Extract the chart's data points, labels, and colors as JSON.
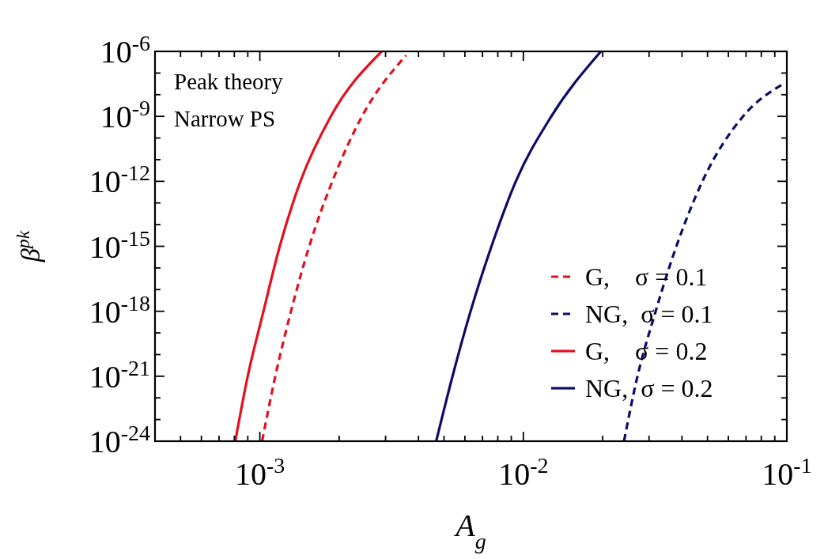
{
  "chart_data": {
    "type": "line",
    "xlabel": "A$_{g}$",
    "ylabel": "β$^{pk}$",
    "log": "xy",
    "legend": "bottom right",
    "grid": false,
    "xlim": [
      0.0004,
      0.1
    ],
    "ylim": [
      1e-24,
      1e-06
    ],
    "xticks": [
      {
        "value": 0.0004,
        "label": null
      },
      {
        "value": 0.0005,
        "label": null
      },
      {
        "value": 0.0006,
        "label": null
      },
      {
        "value": 0.0007,
        "label": null
      },
      {
        "value": 0.0008,
        "label": null
      },
      {
        "value": 0.0009,
        "label": null
      },
      {
        "value": 0.001,
        "label": "10$^{-3}$"
      },
      {
        "value": 0.002,
        "label": null
      },
      {
        "value": 0.003,
        "label": null
      },
      {
        "value": 0.004,
        "label": null
      },
      {
        "value": 0.005,
        "label": null
      },
      {
        "value": 0.006,
        "label": null
      },
      {
        "value": 0.007,
        "label": null
      },
      {
        "value": 0.008,
        "label": null
      },
      {
        "value": 0.009,
        "label": null
      },
      {
        "value": 0.01,
        "label": "10$^{-2}$"
      },
      {
        "value": 0.02,
        "label": null
      },
      {
        "value": 0.03,
        "label": null
      },
      {
        "value": 0.04,
        "label": null
      },
      {
        "value": 0.05,
        "label": null
      },
      {
        "value": 0.06,
        "label": null
      },
      {
        "value": 0.07,
        "label": null
      },
      {
        "value": 0.08,
        "label": null
      },
      {
        "value": 0.09,
        "label": null
      },
      {
        "value": 0.1,
        "label": "10$^{-1}$"
      }
    ],
    "yticks": [
      {
        "value": 1e-24,
        "label": "10$^{-24}$"
      },
      {
        "value": 1e-23,
        "label": null
      },
      {
        "value": 1e-22,
        "label": null
      },
      {
        "value": 1e-21,
        "label": "10$^{-21}$"
      },
      {
        "value": 1e-20,
        "label": null
      },
      {
        "value": 1e-19,
        "label": null
      },
      {
        "value": 1e-18,
        "label": "10$^{-18}$"
      },
      {
        "value": 1e-17,
        "label": null
      },
      {
        "value": 1e-16,
        "label": null
      },
      {
        "value": 1e-15,
        "label": "10$^{-15}$"
      },
      {
        "value": 1e-14,
        "label": null
      },
      {
        "value": 1e-13,
        "label": null
      },
      {
        "value": 1e-12,
        "label": "10$^{-12}$"
      },
      {
        "value": 1e-11,
        "label": null
      },
      {
        "value": 1e-10,
        "label": null
      },
      {
        "value": 1e-09,
        "label": "10$^{-9}$"
      },
      {
        "value": 1e-08,
        "label": null
      },
      {
        "value": 1e-07,
        "label": null
      },
      {
        "value": 1e-06,
        "label": "10$^{-6}$"
      }
    ],
    "annotations": [
      "Peak theory",
      "Narrow PS"
    ],
    "series": [
      {
        "name": "G,    σ = 0.1",
        "color": "#e3101e",
        "line_style": "dashed",
        "x": [
          0.00102,
          0.00114,
          0.00131,
          0.00154,
          0.00189,
          0.00243,
          0.00359
        ],
        "values": [
          1e-24,
          8e-22,
          9e-19,
          1e-15,
          1.1e-12,
          9e-10,
          6.6e-07
        ]
      },
      {
        "name": "NG,  σ = 0.1",
        "color": "#0c0c6a",
        "line_style": "dashed",
        "x": [
          0.0241,
          0.027,
          0.0317,
          0.0381,
          0.048,
          0.0677,
          0.0985
        ],
        "values": [
          1e-24,
          8e-22,
          9e-19,
          1e-15,
          1.1e-12,
          9e-10,
          3.5e-08
        ]
      },
      {
        "name": "G,    σ = 0.2",
        "color": "#e3101e",
        "line_style": "solid",
        "x": [
          0.000807,
          0.000896,
          0.00103,
          0.00119,
          0.00143,
          0.00185,
          0.0029
        ],
        "values": [
          1e-24,
          8e-22,
          9e-19,
          1e-15,
          1.1e-12,
          9e-10,
          1e-06
        ]
      },
      {
        "name": "NG,  σ = 0.2",
        "color": "#0c0c6a",
        "line_style": "solid",
        "x": [
          0.00467,
          0.00536,
          0.00629,
          0.00757,
          0.0094,
          0.0127,
          0.0197
        ],
        "values": [
          1e-24,
          8e-22,
          9e-19,
          1e-15,
          1.1e-12,
          9e-10,
          1e-06
        ]
      }
    ]
  }
}
